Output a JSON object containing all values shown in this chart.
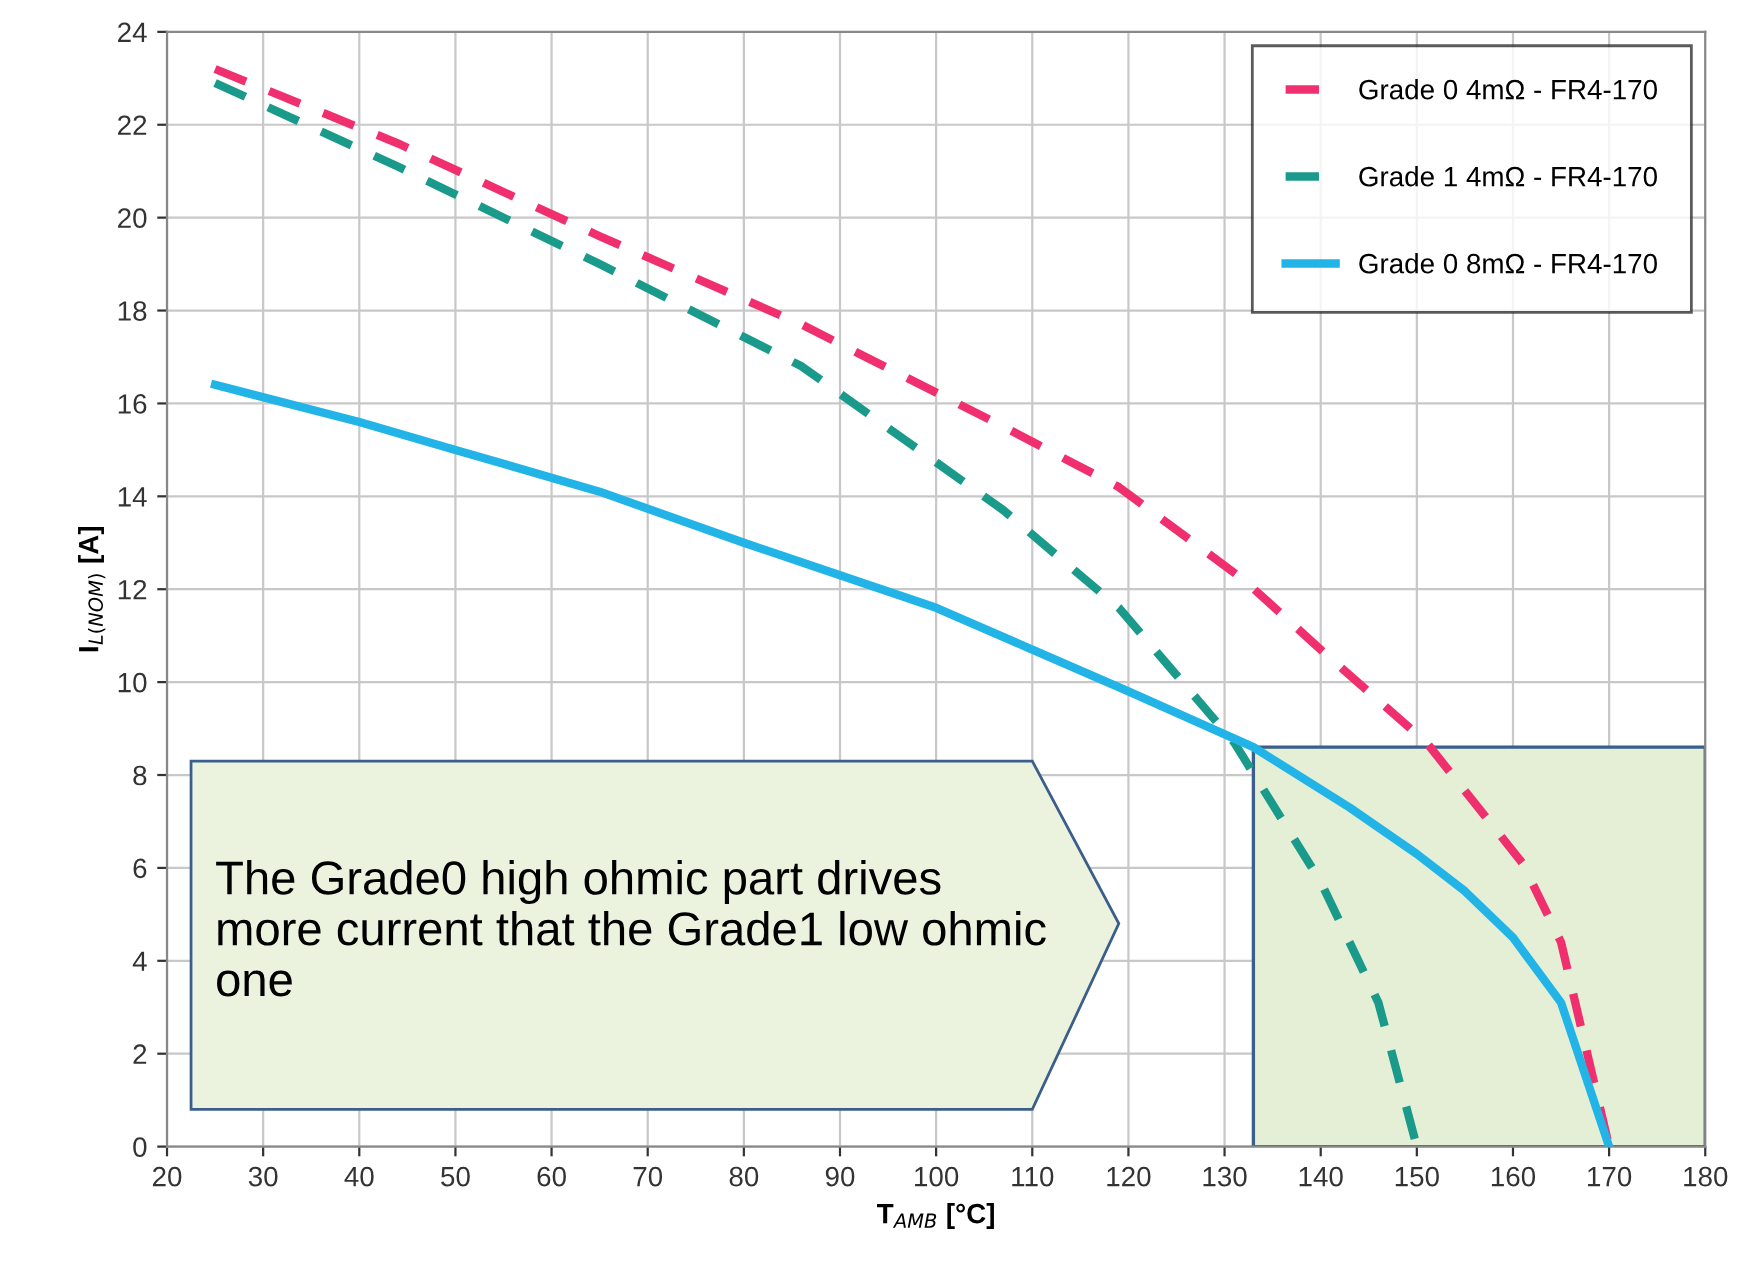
{
  "chart_data": {
    "type": "line",
    "xlabel": "T$_{AMB}$ [°C]",
    "ylabel": "I$_{L(NOM)}$ [A]",
    "xlim": [
      20,
      180
    ],
    "ylim": [
      0,
      24
    ],
    "xticks": [
      20,
      30,
      40,
      50,
      60,
      70,
      80,
      90,
      100,
      110,
      120,
      130,
      140,
      150,
      160,
      170,
      180
    ],
    "yticks": [
      0,
      2,
      4,
      6,
      8,
      10,
      12,
      14,
      16,
      18,
      20,
      22,
      24
    ],
    "grid": true,
    "legend": "top right",
    "marker": "none",
    "series": [
      {
        "name": "Grade 0 4mΩ - FR4-170",
        "color": "#f0306e",
        "line_style": "dashed",
        "x": [
          25,
          44,
          65,
          86,
          107,
          119,
          132,
          140,
          151,
          161,
          165,
          170
        ],
        "values": [
          23.2,
          21.6,
          19.6,
          17.7,
          15.5,
          14.2,
          12.2,
          10.7,
          8.7,
          6.1,
          4.4,
          0
        ]
      },
      {
        "name": "Grade 1 4mΩ - FR4-170",
        "color": "#1a9a8a",
        "line_style": "dashed",
        "x": [
          25,
          44,
          65,
          86,
          107,
          119,
          131,
          140,
          146,
          150
        ],
        "values": [
          22.9,
          21.1,
          19.0,
          16.8,
          13.7,
          11.6,
          8.7,
          5.7,
          3.1,
          0
        ]
      },
      {
        "name": "Grade 0 8mΩ - FR4-170",
        "color": "#22b4e6",
        "line_style": "solid",
        "x": [
          25,
          40,
          50,
          65,
          80,
          90,
          100,
          110,
          120,
          133,
          143,
          150,
          155,
          160,
          165,
          170
        ],
        "values": [
          16.4,
          15.6,
          15.0,
          14.1,
          13.0,
          12.3,
          11.6,
          10.7,
          9.8,
          8.6,
          7.3,
          6.3,
          5.5,
          4.5,
          3.1,
          0
        ]
      }
    ],
    "bands": [
      {
        "axis": "x",
        "from": 133,
        "to": 180,
        "label": null,
        "color": "#e4efd6"
      }
    ],
    "annotations": [
      "The Grade0 high ohmic part drives more current that the Grade1 low ohmic one"
    ]
  }
}
